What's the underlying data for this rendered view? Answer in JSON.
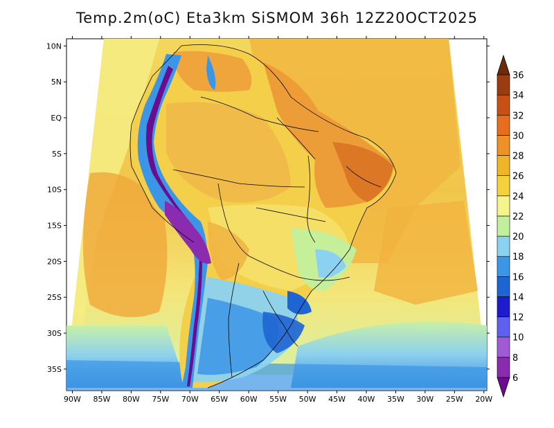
{
  "title": "Temp.2m(oC) Eta3km SiSMOM 36h 12Z20OCT2025",
  "map": {
    "lat_ticks": [
      "10N",
      "5N",
      "EQ",
      "5S",
      "10S",
      "15S",
      "20S",
      "25S",
      "30S",
      "35S"
    ],
    "lon_ticks": [
      "90W",
      "85W",
      "80W",
      "75W",
      "70W",
      "65W",
      "60W",
      "55W",
      "50W",
      "45W",
      "40W",
      "35W",
      "30W",
      "25W",
      "20W"
    ],
    "lat_values": [
      10,
      5,
      0,
      -5,
      -10,
      -15,
      -20,
      -25,
      -30,
      -35
    ],
    "lon_values": [
      -90,
      -85,
      -80,
      -75,
      -70,
      -65,
      -60,
      -55,
      -50,
      -45,
      -40,
      -35,
      -30,
      -25,
      -20
    ],
    "extent": {
      "lon": [
        -91,
        -19.5
      ],
      "lat": [
        -38,
        11
      ]
    }
  },
  "colorbar": {
    "labels": [
      "6",
      "8",
      "10",
      "12",
      "14",
      "16",
      "18",
      "20",
      "22",
      "24",
      "26",
      "28",
      "30",
      "32",
      "34",
      "36"
    ],
    "values": [
      6,
      8,
      10,
      12,
      14,
      16,
      18,
      20,
      22,
      24,
      26,
      28,
      30,
      32,
      34,
      36
    ],
    "colors": [
      "#6a0d91",
      "#8a2bb0",
      "#a05ad6",
      "#5f5ff0",
      "#1c1ccc",
      "#1e64d2",
      "#3c96e6",
      "#8cd2f0",
      "#c2ef9c",
      "#f5f58c",
      "#f5d23c",
      "#f0b428",
      "#ee9128",
      "#e66e1e",
      "#c85014",
      "#9a3b10",
      "#6e2a0c"
    ]
  }
}
